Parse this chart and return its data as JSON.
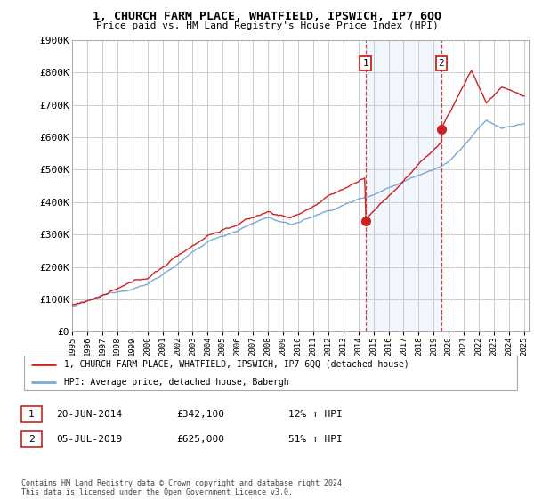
{
  "title": "1, CHURCH FARM PLACE, WHATFIELD, IPSWICH, IP7 6QQ",
  "subtitle": "Price paid vs. HM Land Registry's House Price Index (HPI)",
  "ylim": [
    0,
    900000
  ],
  "yticks": [
    0,
    100000,
    200000,
    300000,
    400000,
    500000,
    600000,
    700000,
    800000,
    900000
  ],
  "ytick_labels": [
    "£0",
    "£100K",
    "£200K",
    "£300K",
    "£400K",
    "£500K",
    "£600K",
    "£700K",
    "£800K",
    "£900K"
  ],
  "x_start_year": 1995,
  "x_end_year": 2025,
  "sale1_date": 2014.47,
  "sale1_price": 342100,
  "sale2_date": 2019.51,
  "sale2_price": 625000,
  "hpi_color": "#7aaad4",
  "price_color": "#cc2222",
  "shaded_color": "#d8eaf8",
  "legend_line1": "1, CHURCH FARM PLACE, WHATFIELD, IPSWICH, IP7 6QQ (detached house)",
  "legend_line2": "HPI: Average price, detached house, Babergh",
  "table_row1": [
    "1",
    "20-JUN-2014",
    "£342,100",
    "12% ↑ HPI"
  ],
  "table_row2": [
    "2",
    "05-JUL-2019",
    "£625,000",
    "51% ↑ HPI"
  ],
  "footer": "Contains HM Land Registry data © Crown copyright and database right 2024.\nThis data is licensed under the Open Government Licence v3.0.",
  "grid_color": "#cccccc"
}
